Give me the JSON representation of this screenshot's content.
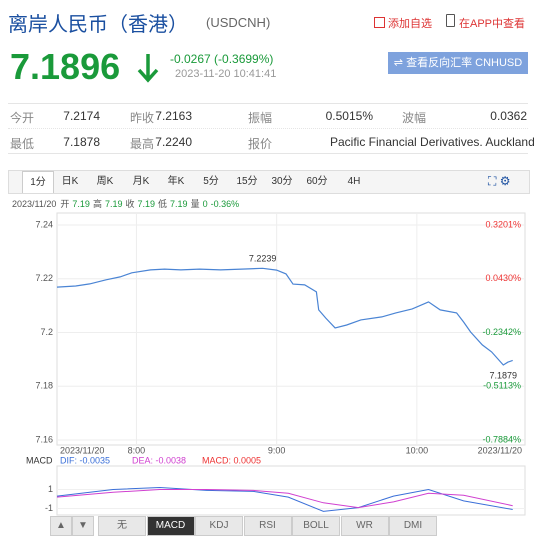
{
  "header": {
    "title": "离岸人民币（香港）",
    "code": "(USDCNH)",
    "add_watch": "添加自选",
    "app_view": "在APP中查看"
  },
  "quote": {
    "price": "7.1896",
    "change": "-0.0267 (-0.3699%)",
    "time": "2023-11-20 10:41:41",
    "reverse_button": "查看反向汇率 CNHUSD"
  },
  "stats": {
    "rows": [
      [
        {
          "label": "今开",
          "value": "7.2174"
        },
        {
          "label": "昨收",
          "value": "7.2163"
        },
        {
          "label": "振幅",
          "value": "0.5015%"
        },
        {
          "label": "波幅",
          "value": "0.0362"
        }
      ],
      [
        {
          "label": "最低",
          "value": "7.1878"
        },
        {
          "label": "最高",
          "value": "7.2240"
        },
        {
          "label": "报价",
          "value": "Pacific Financial Derivatives. Auckland"
        }
      ]
    ]
  },
  "tabs": [
    "1分",
    "日K",
    "周K",
    "月K",
    "年K",
    "5分",
    "15分",
    "30分",
    "60分",
    "4H"
  ],
  "selected_tab": 0,
  "info": {
    "date": "2023/11/20",
    "items": [
      {
        "label": "开",
        "value": "7.19"
      },
      {
        "label": "高",
        "value": "7.19"
      },
      {
        "label": "收",
        "value": "7.19"
      },
      {
        "label": "低",
        "value": "7.19"
      },
      {
        "label": "量",
        "value": "0"
      }
    ],
    "change": "-0.36%"
  },
  "chart_data": {
    "type": "line",
    "x": [
      "7:26",
      "7:34",
      "7:40",
      "7:47",
      "7:53",
      "7:58",
      "8:06",
      "8:12",
      "8:19",
      "8:27",
      "8:36",
      "8:45",
      "8:54",
      "9:00",
      "9:04",
      "9:07",
      "9:12",
      "9:17",
      "9:18",
      "9:21",
      "9:25",
      "9:30",
      "9:36",
      "9:45",
      "9:51",
      "9:58",
      "10:05",
      "10:10",
      "10:17",
      "10:20",
      "10:23",
      "10:28",
      "10:32",
      "10:37",
      "10:39",
      "10:41"
    ],
    "series": [
      {
        "color": "#4a84d4",
        "values": [
          7.2169,
          7.2173,
          7.2181,
          7.2196,
          7.2207,
          7.2222,
          7.2233,
          7.2236,
          7.2233,
          7.2236,
          7.2233,
          7.2236,
          7.2239,
          7.2232,
          7.2218,
          7.218,
          7.2177,
          7.2151,
          7.2084,
          7.2054,
          7.2017,
          7.2028,
          7.2047,
          7.2058,
          7.2073,
          7.2088,
          7.2114,
          7.2084,
          7.2073,
          7.2039,
          7.2002,
          7.1954,
          7.1928,
          7.1879,
          7.189,
          7.1896
        ]
      }
    ],
    "xlim": [
      "7:26",
      "10:45"
    ],
    "xticks": [
      "8:00",
      "9:00",
      "10:00"
    ],
    "x_edge_labels": [
      "2023/11/20",
      "2023/11/20"
    ],
    "ylim": [
      7.16,
      7.24
    ],
    "yticks": [
      7.24,
      7.22,
      7.2,
      7.18,
      7.16
    ],
    "y2lim": [
      -0.7884,
      0.3201
    ],
    "y2ticks": [
      {
        "value": 0.3201,
        "label": "0.3201%"
      },
      {
        "value": 0.043,
        "label": "0.0430%"
      },
      {
        "value": -0.2342,
        "label": "-0.2342%"
      },
      {
        "value": -0.5113,
        "label": "-0.5113%"
      },
      {
        "value": -0.7884,
        "label": "-0.7884%"
      }
    ],
    "grid": true,
    "annotations": [
      {
        "label": "7.2239",
        "x": "8:54",
        "y": 7.2239
      },
      {
        "label": "7.1879",
        "x": "10:37",
        "y": 7.1879
      }
    ],
    "macd": {
      "title": "MACD",
      "x": [
        "7:26",
        "7:50",
        "8:10",
        "8:30",
        "8:50",
        "9:05",
        "9:20",
        "9:35",
        "9:50",
        "10:05",
        "10:20",
        "10:41"
      ],
      "series": [
        {
          "name": "DIF: -0.0035",
          "color": "#3a6fd8",
          "values": [
            0.3,
            1.0,
            1.2,
            0.9,
            0.8,
            0.2,
            -1.3,
            -0.9,
            0.3,
            1.0,
            -0.2,
            -1.1
          ]
        },
        {
          "name": "DEA: -0.0038",
          "color": "#d040d0",
          "values": [
            0.2,
            0.7,
            1.0,
            1.0,
            0.9,
            0.6,
            -0.4,
            -0.9,
            -0.3,
            0.6,
            0.4,
            -0.7
          ]
        }
      ],
      "macd_label": "MACD: 0.0005",
      "ylim": [
        -2.2,
        2.2
      ],
      "yticks": [
        1,
        -1
      ]
    }
  },
  "indicators": [
    "无",
    "MACD",
    "KDJ",
    "RSI",
    "BOLL",
    "WR",
    "DMI"
  ],
  "selected_indicator": 1
}
